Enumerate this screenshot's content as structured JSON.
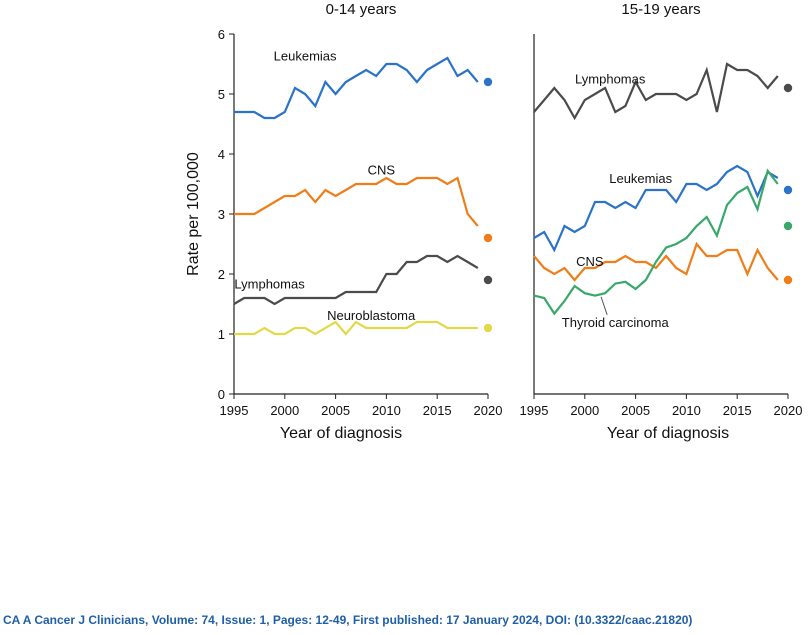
{
  "citation": "CA A Cancer J Clinicians, Volume: 74, Issue: 1, Pages: 12-49, First published: 17 January 2024, DOI: (10.3322/caac.21820)",
  "colors": {
    "leukemias": "#2b72c9",
    "cns": "#ef7d1a",
    "lymphomas": "#4b4b4b",
    "neuroblastoma": "#e3d84a",
    "thyroid": "#3aa86a"
  },
  "chart_data": [
    {
      "type": "line",
      "title": "0-14 years",
      "xlabel": "Year of diagnosis",
      "ylabel": "Rate per 100,000",
      "xlim": [
        1995,
        2020
      ],
      "ylim": [
        0,
        6
      ],
      "xticks": [
        "1995",
        "2000",
        "2005",
        "2010",
        "2015",
        "2020"
      ],
      "yticks": [
        "0",
        "1",
        "2",
        "3",
        "4",
        "5",
        "6"
      ],
      "x": [
        1995,
        1996,
        1997,
        1998,
        1999,
        2000,
        2001,
        2002,
        2003,
        2004,
        2005,
        2006,
        2007,
        2008,
        2009,
        2010,
        2011,
        2012,
        2013,
        2014,
        2015,
        2016,
        2017,
        2018,
        2019
      ],
      "series": [
        {
          "name": "Leukemias",
          "color_key": "leukemias",
          "values": [
            4.7,
            4.7,
            4.7,
            4.6,
            4.6,
            4.7,
            5.1,
            5.0,
            4.8,
            5.2,
            5.0,
            5.2,
            5.3,
            5.4,
            5.3,
            5.5,
            5.5,
            5.4,
            5.2,
            5.4,
            5.5,
            5.6,
            5.3,
            5.4,
            5.2
          ],
          "point_2020": 5.2,
          "label_x": 2002.0,
          "label_y": 5.64
        },
        {
          "name": "CNS",
          "color_key": "cns",
          "values": [
            3.0,
            3.0,
            3.0,
            3.1,
            3.2,
            3.3,
            3.3,
            3.4,
            3.2,
            3.4,
            3.3,
            3.4,
            3.5,
            3.5,
            3.5,
            3.6,
            3.5,
            3.5,
            3.6,
            3.6,
            3.6,
            3.5,
            3.6,
            3.0,
            2.8
          ],
          "point_2020": 2.6,
          "label_x": 2009.5,
          "label_y": 3.74
        },
        {
          "name": "Lymphomas",
          "color_key": "lymphomas",
          "values": [
            1.5,
            1.6,
            1.6,
            1.6,
            1.5,
            1.6,
            1.6,
            1.6,
            1.6,
            1.6,
            1.6,
            1.7,
            1.7,
            1.7,
            1.7,
            2.0,
            2.0,
            2.2,
            2.2,
            2.3,
            2.3,
            2.2,
            2.3,
            2.2,
            2.1
          ],
          "point_2020": 1.9,
          "label_x": 1998.5,
          "label_y": 1.84
        },
        {
          "name": "Neuroblastoma",
          "color_key": "neuroblastoma",
          "values": [
            1.0,
            1.0,
            1.0,
            1.1,
            1.0,
            1.0,
            1.1,
            1.1,
            1.0,
            1.1,
            1.2,
            1.0,
            1.2,
            1.1,
            1.1,
            1.1,
            1.1,
            1.1,
            1.2,
            1.2,
            1.2,
            1.1,
            1.1,
            1.1,
            1.1
          ],
          "point_2020": 1.1,
          "label_x": 2008.5,
          "label_y": 1.32
        }
      ]
    },
    {
      "type": "line",
      "title": "15-19 years",
      "xlabel": "Year of diagnosis",
      "ylabel": "",
      "xlim": [
        1995,
        2020
      ],
      "ylim": [
        0,
        6
      ],
      "xticks": [
        "1995",
        "2000",
        "2005",
        "2010",
        "2015",
        "2020"
      ],
      "yticks": [],
      "x": [
        1995,
        1996,
        1997,
        1998,
        1999,
        2000,
        2001,
        2002,
        2003,
        2004,
        2005,
        2006,
        2007,
        2008,
        2009,
        2010,
        2011,
        2012,
        2013,
        2014,
        2015,
        2016,
        2017,
        2018,
        2019
      ],
      "series": [
        {
          "name": "Lymphomas",
          "color_key": "lymphomas",
          "values": [
            4.7,
            4.9,
            5.1,
            4.9,
            4.6,
            4.9,
            5.0,
            5.1,
            4.7,
            4.8,
            5.2,
            4.9,
            5.0,
            5.0,
            5.0,
            4.9,
            5.0,
            5.4,
            4.7,
            5.5,
            5.4,
            5.4,
            5.3,
            5.1,
            5.3
          ],
          "point_2020": 5.1,
          "label_x": 2002.5,
          "label_y": 5.26
        },
        {
          "name": "Leukemias",
          "color_key": "leukemias",
          "values": [
            2.6,
            2.7,
            2.4,
            2.8,
            2.7,
            2.8,
            3.2,
            3.2,
            3.1,
            3.2,
            3.1,
            3.4,
            3.4,
            3.4,
            3.2,
            3.5,
            3.5,
            3.4,
            3.5,
            3.7,
            3.8,
            3.7,
            3.3,
            3.7,
            3.6
          ],
          "point_2020": 3.4,
          "label_x": 2005.5,
          "label_y": 3.6
        },
        {
          "name": "CNS",
          "color_key": "cns",
          "values": [
            2.3,
            2.1,
            2.0,
            2.1,
            1.9,
            2.1,
            2.1,
            2.2,
            2.2,
            2.3,
            2.2,
            2.2,
            2.1,
            2.3,
            2.1,
            2.0,
            2.5,
            2.3,
            2.3,
            2.4,
            2.4,
            2.0,
            2.4,
            2.1,
            1.9
          ],
          "point_2020": 1.9,
          "label_x": 2000.5,
          "label_y": 2.22
        },
        {
          "name": "Thyroid carcinoma",
          "color_key": "thyroid",
          "values": [
            1.64,
            1.6,
            1.34,
            1.55,
            1.8,
            1.68,
            1.64,
            1.68,
            1.84,
            1.87,
            1.75,
            1.9,
            2.2,
            2.44,
            2.5,
            2.6,
            2.8,
            2.95,
            2.64,
            3.15,
            3.35,
            3.45,
            3.08,
            3.72,
            3.5
          ],
          "point_2020": 2.8,
          "label_x": 2003.0,
          "label_y": 1.2
        }
      ]
    }
  ]
}
